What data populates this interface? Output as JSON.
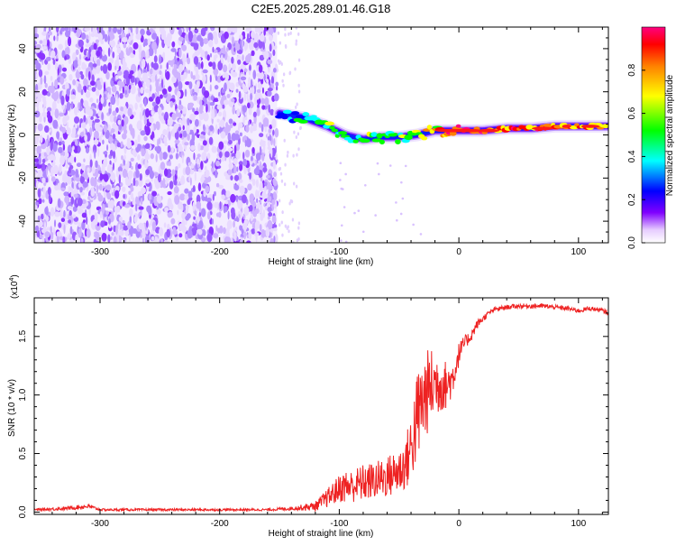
{
  "title": "C2E5.2025.289.01.46.G18",
  "chart_data": [
    {
      "type": "heatmap",
      "name": "spectrogram",
      "xlabel": "Height of straight line (km)",
      "ylabel": "Frequency (Hz)",
      "xlim": [
        -355,
        125
      ],
      "ylim": [
        -50,
        50
      ],
      "xticks": [
        -300,
        -200,
        -100,
        0,
        100
      ],
      "xtick_labels": [
        "-300",
        "-200",
        "-100",
        "0",
        "100"
      ],
      "yticks": [
        -40,
        -20,
        0,
        20,
        40
      ],
      "ytick_labels": [
        "-40",
        "-20",
        "0",
        "20",
        "40"
      ],
      "noise_region_x": [
        -355,
        -152
      ],
      "ridge": {
        "x": [
          -150,
          -130,
          -110,
          -95,
          -80,
          -65,
          -50,
          -35,
          -20,
          -5,
          0,
          20,
          40,
          60,
          80,
          100,
          125
        ],
        "y": [
          10,
          8,
          4,
          0,
          -2,
          -1,
          -1,
          0,
          2,
          2,
          2,
          2,
          3,
          3,
          4,
          4,
          4
        ],
        "amplitude": [
          0.35,
          0.5,
          0.6,
          0.55,
          0.55,
          0.55,
          0.6,
          0.65,
          0.8,
          0.95,
          0.95,
          0.9,
          0.85,
          0.9,
          0.85,
          0.85,
          0.75
        ]
      },
      "colorbar": {
        "label": "Normalized spectral amplitude",
        "range": [
          0,
          1
        ],
        "ticks": [
          0.0,
          0.2,
          0.4,
          0.6,
          0.8
        ],
        "tick_labels": [
          "0.0",
          "0.2",
          "0.4",
          "0.6",
          "0.8"
        ],
        "colors": [
          "#ffffff",
          "#d9b3ff",
          "#8000ff",
          "#0000ff",
          "#00ffff",
          "#00ff00",
          "#ffff00",
          "#ff8000",
          "#ff0000",
          "#ff0080"
        ]
      }
    },
    {
      "type": "line",
      "name": "snr",
      "xlabel": "Height of straight line (km)",
      "ylabel": "SNR (10 * v/v)",
      "scale_label": "(x10",
      "scale_exponent": "4",
      "scale_close": ")",
      "xlim": [
        -355,
        125
      ],
      "ylim": [
        -0.02,
        1.83
      ],
      "xticks": [
        -300,
        -200,
        -100,
        0,
        100
      ],
      "xtick_labels": [
        "-300",
        "-200",
        "-100",
        "0",
        "100"
      ],
      "yticks": [
        0.0,
        0.5,
        1.0,
        1.5
      ],
      "ytick_labels": [
        "0.0",
        "0.5",
        "1.0",
        "1.5"
      ],
      "line_color": "#ee2222",
      "series": [
        {
          "name": "SNR",
          "x": [
            -355,
            -330,
            -310,
            -300,
            -280,
            -250,
            -220,
            -200,
            -180,
            -160,
            -140,
            -120,
            -110,
            -100,
            -95,
            -90,
            -80,
            -70,
            -60,
            -50,
            -45,
            -40,
            -35,
            -30,
            -25,
            -20,
            -15,
            -10,
            -5,
            0,
            5,
            10,
            15,
            20,
            25,
            30,
            40,
            50,
            60,
            70,
            80,
            90,
            100,
            110,
            120,
            125
          ],
          "y": [
            0.02,
            0.03,
            0.05,
            0.02,
            0.02,
            0.02,
            0.02,
            0.02,
            0.02,
            0.02,
            0.03,
            0.05,
            0.12,
            0.2,
            0.22,
            0.22,
            0.25,
            0.27,
            0.3,
            0.35,
            0.4,
            0.55,
            0.8,
            0.95,
            1.05,
            1.1,
            1.1,
            1.08,
            1.15,
            1.35,
            1.45,
            1.5,
            1.6,
            1.65,
            1.7,
            1.73,
            1.75,
            1.76,
            1.76,
            1.76,
            1.75,
            1.74,
            1.72,
            1.74,
            1.72,
            1.7
          ],
          "spread": [
            0.01,
            0.015,
            0.02,
            0.01,
            0.01,
            0.01,
            0.01,
            0.01,
            0.01,
            0.01,
            0.015,
            0.04,
            0.08,
            0.12,
            0.14,
            0.14,
            0.16,
            0.16,
            0.18,
            0.2,
            0.22,
            0.3,
            0.4,
            0.4,
            0.35,
            0.3,
            0.25,
            0.2,
            0.15,
            0.1,
            0.06,
            0.05,
            0.04,
            0.03,
            0.02,
            0.02,
            0.02,
            0.02,
            0.02,
            0.02,
            0.02,
            0.02,
            0.02,
            0.02,
            0.02,
            0.02
          ]
        }
      ]
    }
  ]
}
